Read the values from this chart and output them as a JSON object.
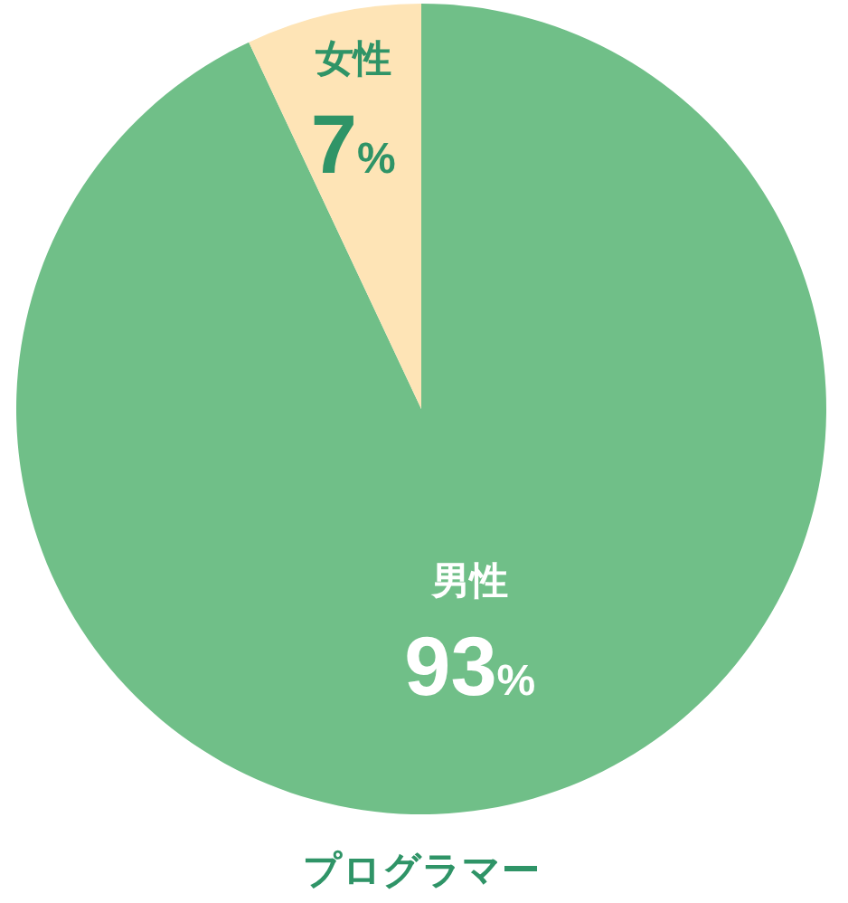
{
  "chart_data": {
    "type": "pie",
    "title": "プログラマー",
    "categories": [
      "男性",
      "女性"
    ],
    "values": [
      93,
      7
    ],
    "colors": [
      "#70bf88",
      "#fee4b6"
    ],
    "value_labels": [
      "93%",
      "7%"
    ]
  }
}
